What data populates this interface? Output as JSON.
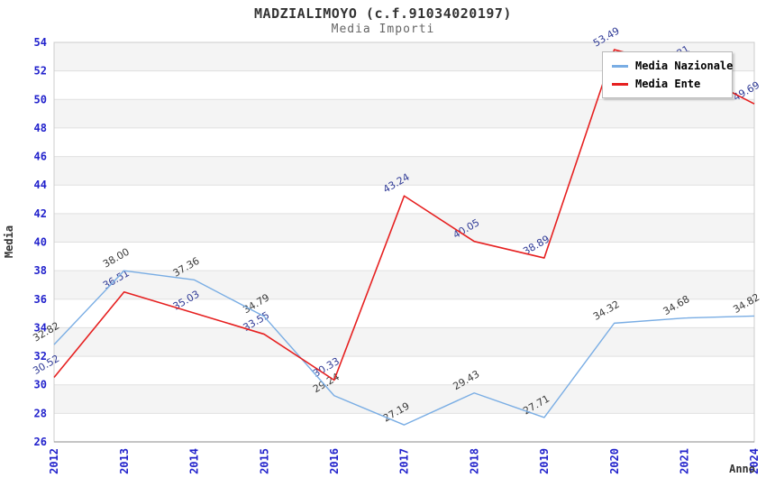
{
  "chart_data": {
    "type": "line",
    "title": "MADZIALIMOYO (c.f.91034020197)",
    "subtitle": "Media Importi",
    "xlabel": "Anno",
    "ylabel": "Media",
    "categories": [
      "2012",
      "2013",
      "2014",
      "2015",
      "2016",
      "2017",
      "2018",
      "2019",
      "2020",
      "2021",
      "2024"
    ],
    "ylim": [
      26,
      54
    ],
    "ytick_step": 2,
    "grid": "horizontal-bands",
    "legend_position": "top-right",
    "series": [
      {
        "name": "Media Nazionale",
        "color": "#79ade4",
        "label_color": "#3a3a3a",
        "values": [
          32.82,
          38.0,
          37.36,
          34.79,
          29.24,
          27.19,
          29.43,
          27.71,
          34.32,
          34.68,
          34.82
        ],
        "labels": [
          "32.82",
          "38.00",
          "37.36",
          "34.79",
          "29.24",
          "27.19",
          "29.43",
          "27.71",
          "34.32",
          "34.68",
          "34.82"
        ]
      },
      {
        "name": "Media Ente",
        "color": "#e62020",
        "label_color": "#2f3a96",
        "values": [
          30.52,
          36.51,
          35.03,
          33.55,
          30.33,
          43.24,
          40.05,
          38.89,
          53.49,
          52.21,
          49.69
        ],
        "labels": [
          "30.52",
          "36.51",
          "35.03",
          "33.55",
          "30.33",
          "43.24",
          "40.05",
          "38.89",
          "53.49",
          "52.21",
          "49.69"
        ]
      }
    ],
    "colors": {
      "tick_label": "#2222cc",
      "band": "#f4f4f4",
      "grid_line": "#e0e0e0",
      "plot_border": "#cccccc",
      "axis_line": "#888888",
      "title": "#333333",
      "subtitle": "#666666"
    }
  }
}
